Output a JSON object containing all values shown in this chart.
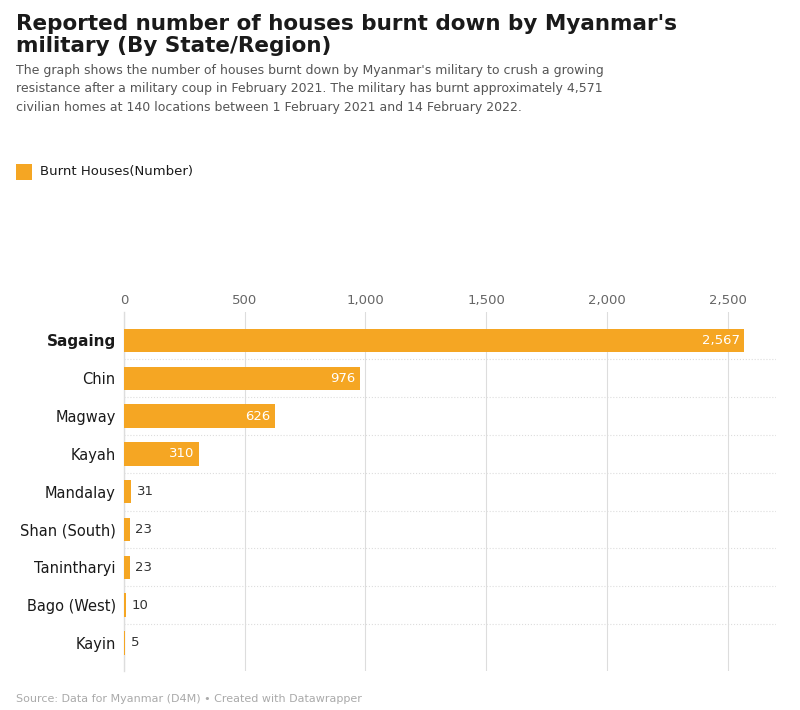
{
  "title_line1": "Reported number of houses burnt down by Myanmar's",
  "title_line2": "military (By State/Region)",
  "subtitle": "The graph shows the number of houses burnt down by Myanmar's military to crush a growing\nresistance after a military coup in February 2021. The military has burnt approximately 4,571\ncivilian homes at 140 locations between 1 February 2021 and 14 February 2022.",
  "legend_label": "Burnt Houses(Number)",
  "source": "Source: Data for Myanmar (D4M) • Created with Datawrapper",
  "categories": [
    "Sagaing",
    "Chin",
    "Magway",
    "Kayah",
    "Mandalay",
    "Shan (South)",
    "Tanintharyi",
    "Bago (West)",
    "Kayin"
  ],
  "values": [
    2567,
    976,
    626,
    310,
    31,
    23,
    23,
    10,
    5
  ],
  "bar_color": "#F5A623",
  "value_label_color_inside": "#ffffff",
  "value_label_color_outside": "#333333",
  "background_color": "#ffffff",
  "grid_color": "#dddddd",
  "axis_label_color": "#666666",
  "title_color": "#1a1a1a",
  "subtitle_color": "#555555",
  "source_color": "#aaaaaa",
  "xlim": [
    0,
    2700
  ],
  "xticks": [
    0,
    500,
    1000,
    1500,
    2000,
    2500
  ],
  "xtick_labels": [
    "0",
    "500",
    "1,000",
    "1,500",
    "2,000",
    "2,500"
  ]
}
